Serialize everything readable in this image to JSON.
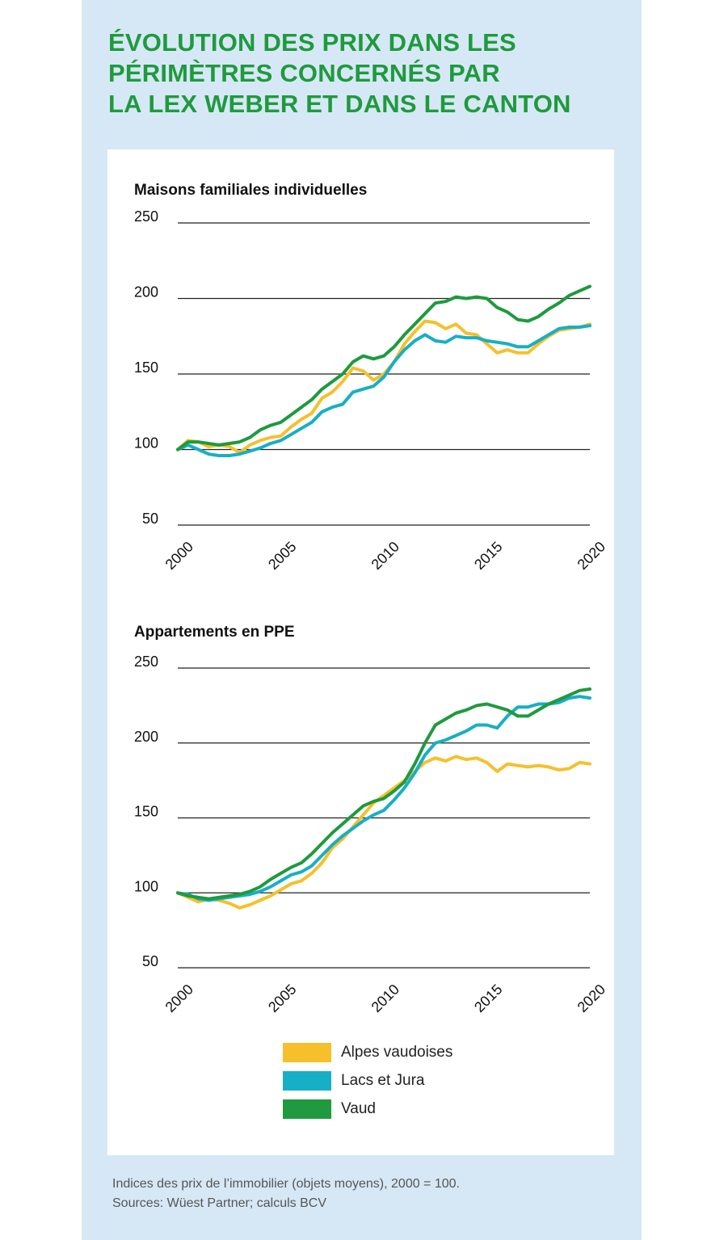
{
  "title": {
    "line1": "ÉVOLUTION DES PRIX DANS LES",
    "line2": "PÉRIMÈTRES CONCERNÉS PAR",
    "line3": "LA LEX WEBER ET DANS LE CANTON"
  },
  "colors": {
    "Alpes vaudoises": "#f6c02c",
    "Lacs et Jura": "#17afc5",
    "Vaud": "#1f9a3e",
    "title": "#1f9a3e",
    "background_panel": "#d6e8f5"
  },
  "chart_data": [
    {
      "type": "line",
      "title": "Maisons familiales individuelles",
      "xlabel": "",
      "ylabel": "",
      "xlim": [
        2000,
        2020
      ],
      "ylim": [
        50,
        250
      ],
      "yticks": [
        "50",
        "100",
        "150",
        "200",
        "250"
      ],
      "xticks": [
        "2000",
        "2005",
        "2010",
        "2015",
        "2020"
      ],
      "grid": true,
      "series": [
        {
          "name": "Alpes vaudoises",
          "x": [
            2000,
            2000.5,
            2001,
            2001.5,
            2002,
            2002.5,
            2003,
            2003.5,
            2004,
            2004.5,
            2005,
            2005.5,
            2006,
            2006.5,
            2007,
            2007.5,
            2008,
            2008.5,
            2009,
            2009.5,
            2010,
            2010.5,
            2011,
            2011.5,
            2012,
            2012.5,
            2013,
            2013.5,
            2014,
            2014.5,
            2015,
            2015.5,
            2016,
            2016.5,
            2017,
            2017.5,
            2018,
            2018.5,
            2019,
            2019.5,
            2020
          ],
          "y": [
            100,
            106,
            105,
            102,
            103,
            102,
            98,
            103,
            106,
            108,
            109,
            115,
            120,
            124,
            134,
            138,
            145,
            154,
            152,
            146,
            150,
            158,
            170,
            178,
            185,
            184,
            180,
            183,
            177,
            176,
            170,
            164,
            166,
            164,
            164,
            170,
            175,
            179,
            180,
            181,
            183
          ]
        },
        {
          "name": "Lacs et Jura",
          "x": [
            2000,
            2000.5,
            2001,
            2001.5,
            2002,
            2002.5,
            2003,
            2003.5,
            2004,
            2004.5,
            2005,
            2005.5,
            2006,
            2006.5,
            2007,
            2007.5,
            2008,
            2008.5,
            2009,
            2009.5,
            2010,
            2010.5,
            2011,
            2011.5,
            2012,
            2012.5,
            2013,
            2013.5,
            2014,
            2014.5,
            2015,
            2015.5,
            2016,
            2016.5,
            2017,
            2017.5,
            2018,
            2018.5,
            2019,
            2019.5,
            2020
          ],
          "y": [
            100,
            103,
            100,
            97,
            96,
            96,
            97,
            99,
            101,
            104,
            106,
            110,
            114,
            118,
            125,
            128,
            130,
            138,
            140,
            142,
            148,
            158,
            166,
            172,
            176,
            172,
            171,
            175,
            174,
            174,
            172,
            171,
            170,
            168,
            168,
            172,
            176,
            180,
            181,
            181,
            182
          ]
        },
        {
          "name": "Vaud",
          "x": [
            2000,
            2000.5,
            2001,
            2001.5,
            2002,
            2002.5,
            2003,
            2003.5,
            2004,
            2004.5,
            2005,
            2005.5,
            2006,
            2006.5,
            2007,
            2007.5,
            2008,
            2008.5,
            2009,
            2009.5,
            2010,
            2010.5,
            2011,
            2011.5,
            2012,
            2012.5,
            2013,
            2013.5,
            2014,
            2014.5,
            2015,
            2015.5,
            2016,
            2016.5,
            2017,
            2017.5,
            2018,
            2018.5,
            2019,
            2019.5,
            2020
          ],
          "y": [
            100,
            105,
            105,
            104,
            103,
            104,
            105,
            108,
            113,
            116,
            118,
            123,
            128,
            133,
            140,
            145,
            150,
            158,
            162,
            160,
            162,
            168,
            176,
            183,
            190,
            197,
            198,
            201,
            200,
            201,
            200,
            194,
            191,
            186,
            185,
            188,
            193,
            197,
            202,
            205,
            208
          ]
        }
      ]
    },
    {
      "type": "line",
      "title": "Appartements en PPE",
      "xlabel": "",
      "ylabel": "",
      "xlim": [
        2000,
        2020
      ],
      "ylim": [
        50,
        250
      ],
      "yticks": [
        "50",
        "100",
        "150",
        "200",
        "250"
      ],
      "xticks": [
        "2000",
        "2005",
        "2010",
        "2015",
        "2020"
      ],
      "grid": true,
      "series": [
        {
          "name": "Alpes vaudoises",
          "x": [
            2000,
            2000.5,
            2001,
            2001.5,
            2002,
            2002.5,
            2003,
            2003.5,
            2004,
            2004.5,
            2005,
            2005.5,
            2006,
            2006.5,
            2007,
            2007.5,
            2008,
            2008.5,
            2009,
            2009.5,
            2010,
            2010.5,
            2011,
            2011.5,
            2012,
            2012.5,
            2013,
            2013.5,
            2014,
            2014.5,
            2015,
            2015.5,
            2016,
            2016.5,
            2017,
            2017.5,
            2018,
            2018.5,
            2019,
            2019.5,
            2020
          ],
          "y": [
            100,
            97,
            94,
            96,
            95,
            93,
            90,
            92,
            95,
            98,
            102,
            106,
            108,
            113,
            120,
            130,
            136,
            144,
            152,
            160,
            165,
            170,
            175,
            181,
            187,
            190,
            188,
            191,
            189,
            190,
            187,
            181,
            186,
            185,
            184,
            185,
            184,
            182,
            183,
            187,
            186
          ]
        },
        {
          "name": "Lacs et Jura",
          "x": [
            2000,
            2000.5,
            2001,
            2001.5,
            2002,
            2002.5,
            2003,
            2003.5,
            2004,
            2004.5,
            2005,
            2005.5,
            2006,
            2006.5,
            2007,
            2007.5,
            2008,
            2008.5,
            2009,
            2009.5,
            2010,
            2010.5,
            2011,
            2011.5,
            2012,
            2012.5,
            2013,
            2013.5,
            2014,
            2014.5,
            2015,
            2015.5,
            2016,
            2016.5,
            2017,
            2017.5,
            2018,
            2018.5,
            2019,
            2019.5,
            2020
          ],
          "y": [
            100,
            99,
            96,
            95,
            96,
            97,
            98,
            99,
            101,
            104,
            108,
            112,
            114,
            118,
            125,
            132,
            138,
            143,
            148,
            152,
            155,
            162,
            170,
            180,
            192,
            200,
            202,
            205,
            208,
            212,
            212,
            210,
            218,
            224,
            224,
            226,
            226,
            227,
            230,
            231,
            230
          ]
        },
        {
          "name": "Vaud",
          "x": [
            2000,
            2000.5,
            2001,
            2001.5,
            2002,
            2002.5,
            2003,
            2003.5,
            2004,
            2004.5,
            2005,
            2005.5,
            2006,
            2006.5,
            2007,
            2007.5,
            2008,
            2008.5,
            2009,
            2009.5,
            2010,
            2010.5,
            2011,
            2011.5,
            2012,
            2012.5,
            2013,
            2013.5,
            2014,
            2014.5,
            2015,
            2015.5,
            2016,
            2016.5,
            2017,
            2017.5,
            2018,
            2018.5,
            2019,
            2019.5,
            2020
          ],
          "y": [
            100,
            98,
            97,
            96,
            97,
            98,
            99,
            101,
            104,
            109,
            113,
            117,
            120,
            126,
            133,
            140,
            146,
            152,
            158,
            161,
            163,
            168,
            174,
            186,
            200,
            212,
            216,
            220,
            222,
            225,
            226,
            224,
            222,
            218,
            218,
            222,
            226,
            229,
            232,
            235,
            236
          ]
        }
      ]
    }
  ],
  "legend": [
    {
      "label": "Alpes vaudoises",
      "color": "#f6c02c"
    },
    {
      "label": "Lacs et Jura",
      "color": "#17afc5"
    },
    {
      "label": "Vaud",
      "color": "#1f9a3e"
    }
  ],
  "footer": {
    "line1": "Indices des prix de l’immobilier (objets moyens), 2000 = 100.",
    "line2": "Sources: Wüest Partner; calculs BCV"
  }
}
